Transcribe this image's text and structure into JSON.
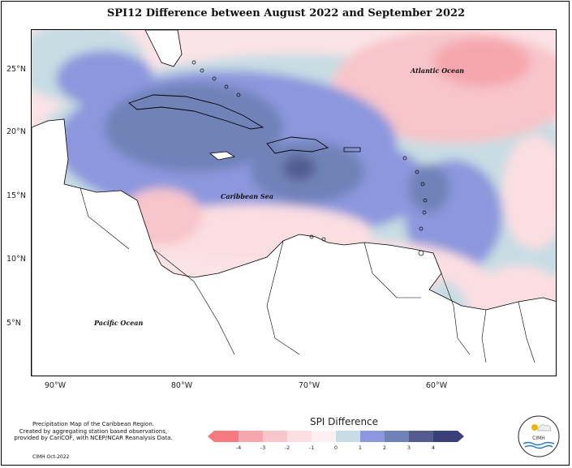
{
  "title": "SPI12 Difference between August 2022 and September 2022",
  "map": {
    "latitude_labels": [
      "25°N",
      "20°N",
      "15°N",
      "10°N",
      "5°N"
    ],
    "longitude_labels": [
      "90°W",
      "80°W",
      "70°W",
      "60°W"
    ],
    "labels": {
      "atlantic": "Atlantic Ocean",
      "caribbean": "Caribbean Sea",
      "pacific": "Pacific Ocean"
    }
  },
  "legend": {
    "title": "SPI Difference",
    "ticks": [
      "-4",
      "-3",
      "-2",
      "-1",
      "0",
      "1",
      "2",
      "3",
      "4"
    ],
    "colors": [
      "#f47a80",
      "#f5a7ad",
      "#f7c5ca",
      "#fbdee2",
      "#fdf0f2",
      "#c7dde3",
      "#8c97dd",
      "#6f82b8",
      "#535b8f",
      "#3a3f7a"
    ]
  },
  "credit": {
    "line1": "Precipitation Map of the Caribbean Region.",
    "line2": "Created by aggregating station based observations,",
    "line3": "provided by CariCOF, with NCEP/NCAR Reanalysis Data.",
    "made": "CIMH Oct-2022"
  },
  "logo": {
    "text": "CIMH"
  }
}
